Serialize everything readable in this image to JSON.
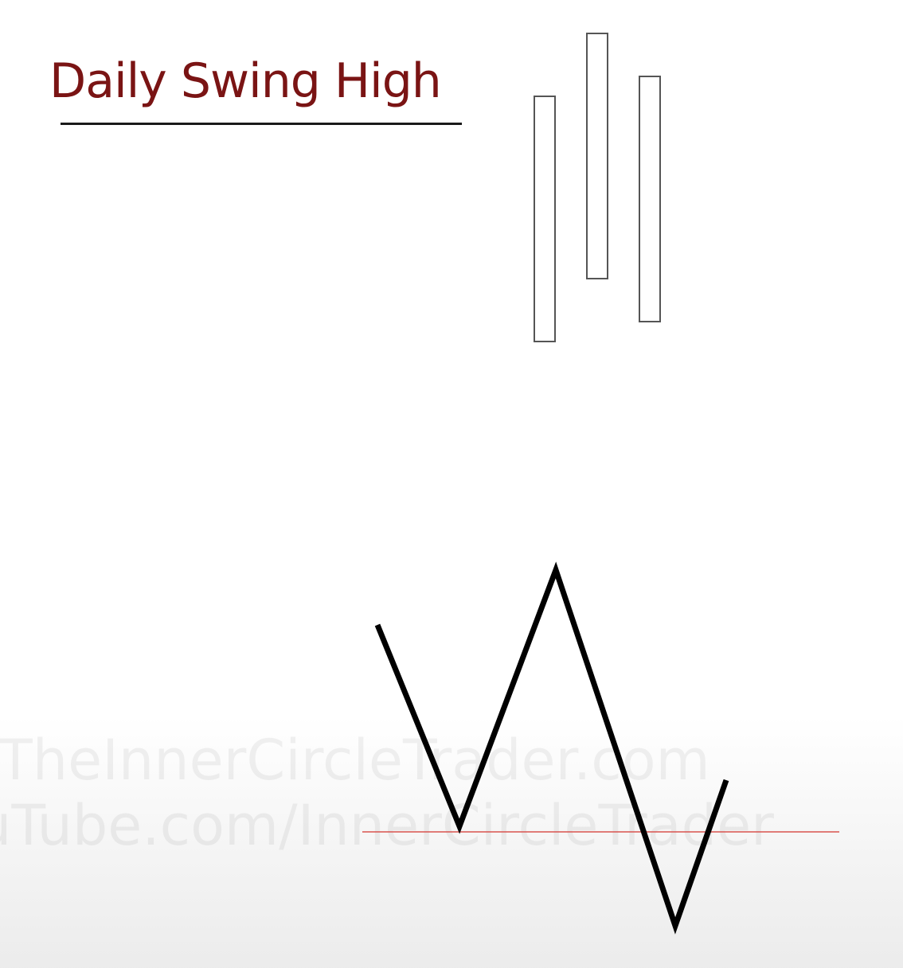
{
  "slide": {
    "title": "Daily Swing High"
  },
  "watermark": {
    "line1": "TheInnerCircleTrader.com",
    "line2": "uTube.com/InnerCircleTrader"
  },
  "colors": {
    "title": "#7a1414",
    "level_line": "#d9534f",
    "bar_border": "#555555",
    "zigzag": "#000000"
  }
}
